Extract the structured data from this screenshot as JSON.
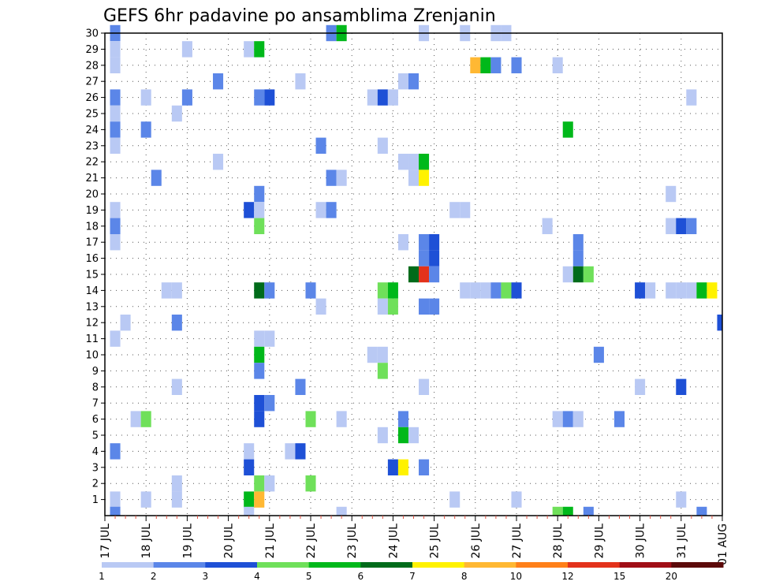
{
  "chart_data": {
    "type": "heatmap",
    "title": "GEFS 6hr padavine po ansamblima Zrenjanin",
    "xlabel": "",
    "ylabel": "",
    "y_tick_labels": [
      "1",
      "2",
      "3",
      "4",
      "5",
      "6",
      "7",
      "8",
      "9",
      "10",
      "11",
      "12",
      "13",
      "14",
      "15",
      "16",
      "17",
      "18",
      "19",
      "20",
      "21",
      "22",
      "23",
      "24",
      "25",
      "26",
      "27",
      "28",
      "29",
      "30"
    ],
    "ylim": [
      0,
      30
    ],
    "x_tick_labels": [
      "17 JUL",
      "18 JUL",
      "19 JUL",
      "20 JUL",
      "21 JUL",
      "22 JUL",
      "23 JUL",
      "24 JUL",
      "25 JUL",
      "26 JUL",
      "27 JUL",
      "28 JUL",
      "29 JUL",
      "30 JUL",
      "31 JUL",
      "01 AUG"
    ],
    "x_range_days": [
      0,
      15
    ],
    "x_unit": "days since 17 JUL 00Z (6-hour steps)",
    "grid": true,
    "legend_levels": [
      "1",
      "2",
      "3",
      "4",
      "5",
      "6",
      "7",
      "8",
      "10",
      "12",
      "15",
      "20"
    ],
    "legend_colors": [
      "#b9c9f4",
      "#5b86e8",
      "#1e50d6",
      "#6fe05a",
      "#00b81a",
      "#006b1a",
      "#fff200",
      "#ffb833",
      "#ff8019",
      "#e3321b",
      "#a00e16",
      "#5c0a0a"
    ],
    "cells": [
      {
        "x": 0.25,
        "y": 30,
        "v": 2
      },
      {
        "x": 0.25,
        "y": 29,
        "v": 1
      },
      {
        "x": 0.25,
        "y": 28,
        "v": 1
      },
      {
        "x": 0.25,
        "y": 26,
        "v": 2
      },
      {
        "x": 0.25,
        "y": 25,
        "v": 1
      },
      {
        "x": 0.25,
        "y": 24,
        "v": 2
      },
      {
        "x": 0.25,
        "y": 23,
        "v": 1
      },
      {
        "x": 0.25,
        "y": 19,
        "v": 1
      },
      {
        "x": 0.25,
        "y": 18,
        "v": 2
      },
      {
        "x": 0.25,
        "y": 17,
        "v": 1
      },
      {
        "x": 0.25,
        "y": 11,
        "v": 1
      },
      {
        "x": 0.25,
        "y": 4,
        "v": 2
      },
      {
        "x": 0.25,
        "y": 1,
        "v": 1
      },
      {
        "x": 0.25,
        "y": 0,
        "v": 2
      },
      {
        "x": 0.5,
        "y": 12,
        "v": 1
      },
      {
        "x": 0.75,
        "y": 6,
        "v": 1
      },
      {
        "x": 1.0,
        "y": 26,
        "v": 1
      },
      {
        "x": 1.0,
        "y": 24,
        "v": 2
      },
      {
        "x": 1.0,
        "y": 6,
        "v": 4
      },
      {
        "x": 1.0,
        "y": 1,
        "v": 1
      },
      {
        "x": 1.25,
        "y": 21,
        "v": 2
      },
      {
        "x": 1.5,
        "y": 14,
        "v": 1
      },
      {
        "x": 1.75,
        "y": 25,
        "v": 1
      },
      {
        "x": 1.75,
        "y": 14,
        "v": 1
      },
      {
        "x": 1.75,
        "y": 12,
        "v": 2
      },
      {
        "x": 1.75,
        "y": 8,
        "v": 1
      },
      {
        "x": 1.75,
        "y": 2,
        "v": 1
      },
      {
        "x": 1.75,
        "y": 1,
        "v": 1
      },
      {
        "x": 2.0,
        "y": 29,
        "v": 1
      },
      {
        "x": 2.0,
        "y": 26,
        "v": 2
      },
      {
        "x": 2.75,
        "y": 27,
        "v": 2
      },
      {
        "x": 2.75,
        "y": 22,
        "v": 1
      },
      {
        "x": 3.5,
        "y": 29,
        "v": 1
      },
      {
        "x": 3.5,
        "y": 19,
        "v": 3
      },
      {
        "x": 3.5,
        "y": 4,
        "v": 1
      },
      {
        "x": 3.5,
        "y": 3,
        "v": 3
      },
      {
        "x": 3.5,
        "y": 1,
        "v": 5
      },
      {
        "x": 3.5,
        "y": 0,
        "v": 1
      },
      {
        "x": 3.75,
        "y": 29,
        "v": 5
      },
      {
        "x": 3.75,
        "y": 26,
        "v": 2
      },
      {
        "x": 3.75,
        "y": 20,
        "v": 2
      },
      {
        "x": 3.75,
        "y": 19,
        "v": 1
      },
      {
        "x": 3.75,
        "y": 18,
        "v": 4
      },
      {
        "x": 3.75,
        "y": 14,
        "v": 6
      },
      {
        "x": 3.75,
        "y": 11,
        "v": 1
      },
      {
        "x": 3.75,
        "y": 10,
        "v": 5
      },
      {
        "x": 3.75,
        "y": 9,
        "v": 2
      },
      {
        "x": 3.75,
        "y": 7,
        "v": 3
      },
      {
        "x": 3.75,
        "y": 6,
        "v": 3
      },
      {
        "x": 3.75,
        "y": 2,
        "v": 4
      },
      {
        "x": 3.75,
        "y": 1,
        "v": 8
      },
      {
        "x": 4.0,
        "y": 26,
        "v": 3
      },
      {
        "x": 4.0,
        "y": 14,
        "v": 2
      },
      {
        "x": 4.0,
        "y": 11,
        "v": 1
      },
      {
        "x": 4.0,
        "y": 7,
        "v": 2
      },
      {
        "x": 4.0,
        "y": 2,
        "v": 1
      },
      {
        "x": 4.5,
        "y": 4,
        "v": 1
      },
      {
        "x": 4.75,
        "y": 27,
        "v": 1
      },
      {
        "x": 4.75,
        "y": 8,
        "v": 2
      },
      {
        "x": 4.75,
        "y": 4,
        "v": 3
      },
      {
        "x": 5.0,
        "y": 14,
        "v": 2
      },
      {
        "x": 5.0,
        "y": 6,
        "v": 4
      },
      {
        "x": 5.0,
        "y": 2,
        "v": 4
      },
      {
        "x": 5.25,
        "y": 23,
        "v": 2
      },
      {
        "x": 5.25,
        "y": 19,
        "v": 1
      },
      {
        "x": 5.25,
        "y": 13,
        "v": 1
      },
      {
        "x": 5.5,
        "y": 30,
        "v": 2
      },
      {
        "x": 5.5,
        "y": 21,
        "v": 2
      },
      {
        "x": 5.5,
        "y": 19,
        "v": 2
      },
      {
        "x": 5.75,
        "y": 30,
        "v": 5
      },
      {
        "x": 5.75,
        "y": 21,
        "v": 1
      },
      {
        "x": 5.75,
        "y": 6,
        "v": 1
      },
      {
        "x": 5.75,
        "y": 0,
        "v": 1
      },
      {
        "x": 6.5,
        "y": 26,
        "v": 1
      },
      {
        "x": 6.5,
        "y": 10,
        "v": 1
      },
      {
        "x": 6.75,
        "y": 26,
        "v": 3
      },
      {
        "x": 6.75,
        "y": 23,
        "v": 1
      },
      {
        "x": 6.75,
        "y": 14,
        "v": 4
      },
      {
        "x": 6.75,
        "y": 13,
        "v": 1
      },
      {
        "x": 6.75,
        "y": 10,
        "v": 1
      },
      {
        "x": 6.75,
        "y": 9,
        "v": 4
      },
      {
        "x": 6.75,
        "y": 5,
        "v": 1
      },
      {
        "x": 7.0,
        "y": 26,
        "v": 1
      },
      {
        "x": 7.0,
        "y": 14,
        "v": 5
      },
      {
        "x": 7.0,
        "y": 13,
        "v": 4
      },
      {
        "x": 7.0,
        "y": 3,
        "v": 3
      },
      {
        "x": 7.25,
        "y": 27,
        "v": 1
      },
      {
        "x": 7.25,
        "y": 22,
        "v": 1
      },
      {
        "x": 7.25,
        "y": 17,
        "v": 1
      },
      {
        "x": 7.25,
        "y": 6,
        "v": 2
      },
      {
        "x": 7.25,
        "y": 5,
        "v": 5
      },
      {
        "x": 7.25,
        "y": 3,
        "v": 7
      },
      {
        "x": 7.5,
        "y": 27,
        "v": 2
      },
      {
        "x": 7.5,
        "y": 22,
        "v": 1
      },
      {
        "x": 7.5,
        "y": 21,
        "v": 1
      },
      {
        "x": 7.5,
        "y": 15,
        "v": 6
      },
      {
        "x": 7.5,
        "y": 5,
        "v": 1
      },
      {
        "x": 7.75,
        "y": 30,
        "v": 1
      },
      {
        "x": 7.75,
        "y": 22,
        "v": 5
      },
      {
        "x": 7.75,
        "y": 21,
        "v": 7
      },
      {
        "x": 7.75,
        "y": 17,
        "v": 2
      },
      {
        "x": 7.75,
        "y": 16,
        "v": 2
      },
      {
        "x": 7.75,
        "y": 15,
        "v": 12
      },
      {
        "x": 7.75,
        "y": 13,
        "v": 2
      },
      {
        "x": 7.75,
        "y": 8,
        "v": 1
      },
      {
        "x": 7.75,
        "y": 3,
        "v": 2
      },
      {
        "x": 8.0,
        "y": 17,
        "v": 3
      },
      {
        "x": 8.0,
        "y": 16,
        "v": 3
      },
      {
        "x": 8.0,
        "y": 15,
        "v": 2
      },
      {
        "x": 8.0,
        "y": 13,
        "v": 2
      },
      {
        "x": 8.5,
        "y": 19,
        "v": 1
      },
      {
        "x": 8.5,
        "y": 1,
        "v": 1
      },
      {
        "x": 8.75,
        "y": 30,
        "v": 1
      },
      {
        "x": 8.75,
        "y": 19,
        "v": 1
      },
      {
        "x": 8.75,
        "y": 14,
        "v": 1
      },
      {
        "x": 9.0,
        "y": 28,
        "v": 8
      },
      {
        "x": 9.0,
        "y": 14,
        "v": 1
      },
      {
        "x": 9.25,
        "y": 28,
        "v": 5
      },
      {
        "x": 9.25,
        "y": 14,
        "v": 1
      },
      {
        "x": 9.5,
        "y": 30,
        "v": 1
      },
      {
        "x": 9.5,
        "y": 28,
        "v": 2
      },
      {
        "x": 9.5,
        "y": 14,
        "v": 2
      },
      {
        "x": 9.75,
        "y": 30,
        "v": 1
      },
      {
        "x": 9.75,
        "y": 14,
        "v": 4
      },
      {
        "x": 10.0,
        "y": 28,
        "v": 2
      },
      {
        "x": 10.0,
        "y": 14,
        "v": 3
      },
      {
        "x": 10.0,
        "y": 1,
        "v": 1
      },
      {
        "x": 10.75,
        "y": 18,
        "v": 1
      },
      {
        "x": 11.0,
        "y": 28,
        "v": 1
      },
      {
        "x": 11.0,
        "y": 6,
        "v": 1
      },
      {
        "x": 11.0,
        "y": 0,
        "v": 4
      },
      {
        "x": 11.25,
        "y": 24,
        "v": 5
      },
      {
        "x": 11.25,
        "y": 15,
        "v": 1
      },
      {
        "x": 11.25,
        "y": 6,
        "v": 2
      },
      {
        "x": 11.25,
        "y": 0,
        "v": 5
      },
      {
        "x": 11.5,
        "y": 17,
        "v": 2
      },
      {
        "x": 11.5,
        "y": 16,
        "v": 2
      },
      {
        "x": 11.5,
        "y": 15,
        "v": 6
      },
      {
        "x": 11.5,
        "y": 6,
        "v": 1
      },
      {
        "x": 11.75,
        "y": 15,
        "v": 4
      },
      {
        "x": 11.75,
        "y": 0,
        "v": 2
      },
      {
        "x": 12.0,
        "y": 10,
        "v": 2
      },
      {
        "x": 12.5,
        "y": 6,
        "v": 2
      },
      {
        "x": 13.0,
        "y": 14,
        "v": 3
      },
      {
        "x": 13.0,
        "y": 8,
        "v": 1
      },
      {
        "x": 13.25,
        "y": 14,
        "v": 1
      },
      {
        "x": 13.75,
        "y": 20,
        "v": 1
      },
      {
        "x": 13.75,
        "y": 18,
        "v": 1
      },
      {
        "x": 13.75,
        "y": 14,
        "v": 1
      },
      {
        "x": 14.0,
        "y": 18,
        "v": 3
      },
      {
        "x": 14.0,
        "y": 14,
        "v": 1
      },
      {
        "x": 14.0,
        "y": 8,
        "v": 3
      },
      {
        "x": 14.0,
        "y": 1,
        "v": 1
      },
      {
        "x": 14.25,
        "y": 26,
        "v": 1
      },
      {
        "x": 14.25,
        "y": 18,
        "v": 2
      },
      {
        "x": 14.25,
        "y": 14,
        "v": 1
      },
      {
        "x": 14.5,
        "y": 14,
        "v": 5
      },
      {
        "x": 14.5,
        "y": 0,
        "v": 2
      },
      {
        "x": 14.75,
        "y": 14,
        "v": 7
      },
      {
        "x": 15.0,
        "y": 12,
        "v": 3
      }
    ]
  }
}
